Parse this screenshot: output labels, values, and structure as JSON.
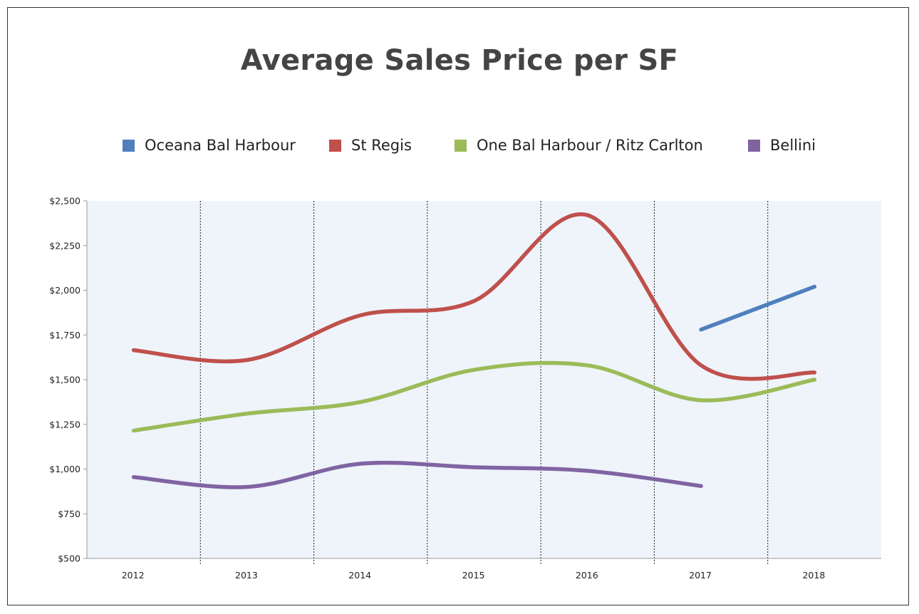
{
  "chart_data": {
    "type": "line",
    "title": "Average Sales Price per SF",
    "xlabel": "",
    "ylabel": "",
    "categories": [
      "2012",
      "2013",
      "2014",
      "2015",
      "2016",
      "2017",
      "2018"
    ],
    "ylim": [
      500,
      2500
    ],
    "yticks": [
      "$500",
      "$750",
      "$1,000",
      "$1,250",
      "$1,500",
      "$1,750",
      "$2,000",
      "$2,250",
      "$2,500"
    ],
    "grid": "vertical dotted between categories",
    "legend_position": "top",
    "series": [
      {
        "name": "Oceana Bal Harbour",
        "color": "#4f7fbd",
        "values": [
          null,
          null,
          null,
          null,
          null,
          1780,
          2020
        ]
      },
      {
        "name": "St Regis",
        "color": "#bf504c",
        "values": [
          1665,
          1610,
          1860,
          1940,
          2420,
          1580,
          1540
        ]
      },
      {
        "name": "One Bal Harbour / Ritz Carlton",
        "color": "#9bbb59",
        "values": [
          1215,
          1310,
          1375,
          1555,
          1580,
          1385,
          1500
        ]
      },
      {
        "name": "Bellini",
        "color": "#8064a2",
        "values": [
          955,
          900,
          1030,
          1010,
          990,
          905,
          null
        ]
      }
    ]
  }
}
